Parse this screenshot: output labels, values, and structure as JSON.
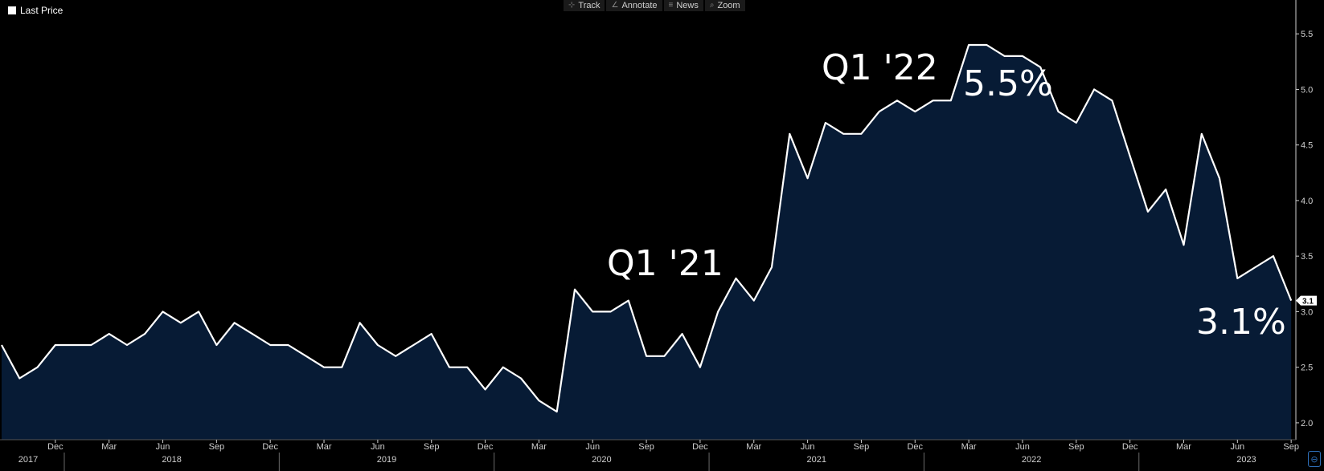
{
  "legend": {
    "label": "Last Price"
  },
  "toolbar": [
    {
      "label": "Track",
      "icon": "crosshair-icon",
      "glyph": "⊹"
    },
    {
      "label": "Annotate",
      "icon": "pencil-icon",
      "glyph": "∠"
    },
    {
      "label": "News",
      "icon": "news-icon",
      "glyph": "≡"
    },
    {
      "label": "Zoom",
      "icon": "magnifier-icon",
      "glyph": "⌕"
    }
  ],
  "colors": {
    "background": "#000000",
    "area_fill": "#071b35",
    "line": "#ffffff",
    "axis_text": "#cfcfcf"
  },
  "chart_data": {
    "type": "area",
    "series": [
      {
        "name": "Last Price",
        "values": [
          2.7,
          2.4,
          2.5,
          2.7,
          2.7,
          2.7,
          2.8,
          2.7,
          2.8,
          3.0,
          2.9,
          3.0,
          2.7,
          2.9,
          2.8,
          2.7,
          2.7,
          2.6,
          2.5,
          2.5,
          2.9,
          2.7,
          2.6,
          2.7,
          2.8,
          2.5,
          2.5,
          2.3,
          2.5,
          2.4,
          2.2,
          2.1,
          3.2,
          3.0,
          3.0,
          3.1,
          2.6,
          2.6,
          2.8,
          2.5,
          3.0,
          3.3,
          3.1,
          3.4,
          4.6,
          4.2,
          4.7,
          4.6,
          4.6,
          4.8,
          4.9,
          4.8,
          4.9,
          4.9,
          5.4,
          5.4,
          5.3,
          5.3,
          5.2,
          4.8,
          4.7,
          5.0,
          4.9,
          4.4,
          3.9,
          4.1,
          3.6,
          4.6,
          4.2,
          3.3,
          3.4,
          3.5,
          3.1
        ]
      }
    ],
    "x_start": "2017-09",
    "x_end": "2023-09",
    "ylim": [
      1.8,
      5.65
    ],
    "y_ticks": [
      "2.0",
      "2.5",
      "3.0",
      "3.5",
      "4.0",
      "4.5",
      "5.0",
      "5.5"
    ],
    "month_ticks": [
      "Dec",
      "Mar",
      "Jun",
      "Sep",
      "Dec",
      "Mar",
      "Jun",
      "Sep",
      "Dec",
      "Mar",
      "Jun",
      "Sep",
      "Dec",
      "Mar",
      "Jun",
      "Sep",
      "Dec",
      "Mar",
      "Jun",
      "Sep",
      "Dec",
      "Mar",
      "Jun",
      "Sep"
    ],
    "year_labels": [
      "2017",
      "2018",
      "2019",
      "2020",
      "2021",
      "2022",
      "2023"
    ],
    "last_value_badge": "3.1",
    "annotations": [
      "Q1 '21",
      "Q1 '22",
      "5.5%",
      "3.1%"
    ]
  }
}
